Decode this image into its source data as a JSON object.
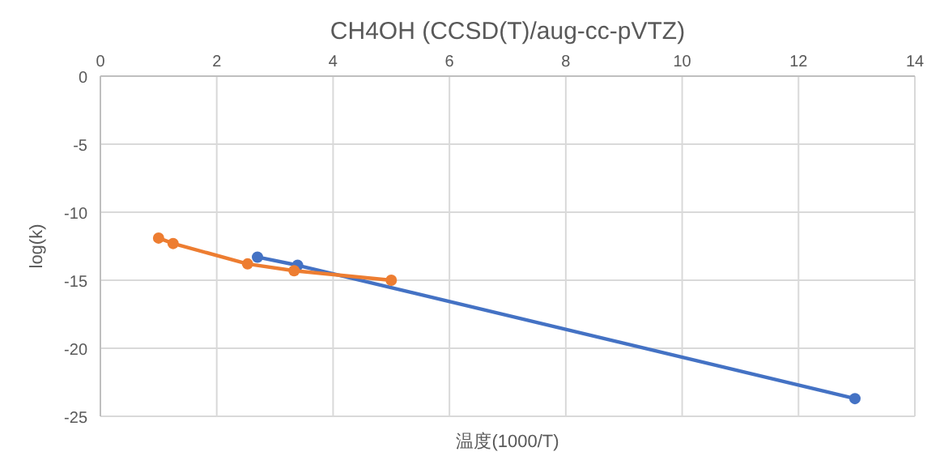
{
  "chart_data": {
    "type": "line",
    "title": "CH4OH (CCSD(T)/aug-cc-pVTZ)",
    "xlabel": "温度(1000/T)",
    "ylabel": "log(k)",
    "xlim": [
      0,
      14
    ],
    "xticks": [
      0,
      2,
      4,
      6,
      8,
      10,
      12,
      14
    ],
    "ylim": [
      -25,
      0
    ],
    "yticks": [
      0,
      -5,
      -10,
      -15,
      -20,
      -25
    ],
    "grid": true,
    "marker": "circle",
    "series": [
      {
        "color": "#4472c4",
        "x": [
          2.7,
          3.39,
          12.97
        ],
        "values": [
          -13.3,
          -13.9,
          -23.7
        ]
      },
      {
        "color": "#ed7d31",
        "x": [
          1.0,
          1.25,
          2.53,
          3.33,
          5.0
        ],
        "values": [
          -11.9,
          -12.3,
          -13.8,
          -14.3,
          -15.0
        ]
      }
    ]
  }
}
